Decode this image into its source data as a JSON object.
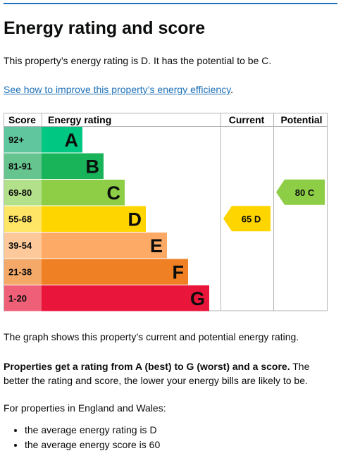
{
  "heading": "Energy rating and score",
  "intro": "This property’s energy rating is D. It has the potential to be C.",
  "improve_link": "See how to improve this property’s energy efficiency",
  "improve_link_suffix": ".",
  "chart_data": {
    "type": "bar",
    "headers": {
      "score": "Score",
      "rating": "Energy rating",
      "current": "Current",
      "potential": "Potential"
    },
    "bands": [
      {
        "score": "92+",
        "letter": "A",
        "color": "#00c781",
        "bg": "#5fc69e"
      },
      {
        "score": "81-91",
        "letter": "B",
        "color": "#19b459",
        "bg": "#66c48e"
      },
      {
        "score": "69-80",
        "letter": "C",
        "color": "#8dce46",
        "bg": "#b3e08a"
      },
      {
        "score": "55-68",
        "letter": "D",
        "color": "#ffd500",
        "bg": "#ffe566"
      },
      {
        "score": "39-54",
        "letter": "E",
        "color": "#fcaa65",
        "bg": "#fdc99a"
      },
      {
        "score": "21-38",
        "letter": "F",
        "color": "#ef8023",
        "bg": "#f5a968"
      },
      {
        "score": "1-20",
        "letter": "G",
        "color": "#e9153b",
        "bg": "#ef5f77"
      }
    ],
    "current": {
      "value": 65,
      "letter": "D",
      "band_index": 3,
      "label": "65  D",
      "color": "#ffd500"
    },
    "potential": {
      "value": 80,
      "letter": "C",
      "band_index": 2,
      "label": "80  C",
      "color": "#8dce46"
    }
  },
  "graph_desc": "The graph shows this property’s current and potential energy rating.",
  "rating_bold": "Properties get a rating from A (best) to G (worst) and a score.",
  "rating_rest": " The better the rating and score, the lower your energy bills are likely to be.",
  "avg_intro": "For properties in England and Wales:",
  "bullets": [
    "the average energy rating is D",
    "the average energy score is 60"
  ]
}
